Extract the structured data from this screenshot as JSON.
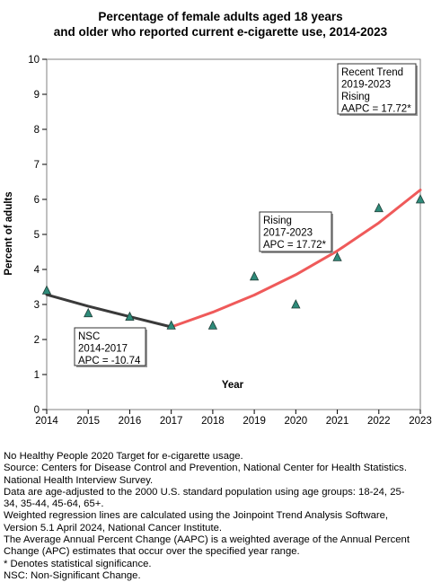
{
  "chart_data": {
    "type": "scatter",
    "title_lines": [
      "Percentage of female adults aged 18 years",
      "and older who reported current e-cigarette use, 2014-2023"
    ],
    "xlabel": "Year",
    "ylabel": "Percent of adults",
    "xlim": [
      2014,
      2023
    ],
    "ylim": [
      0,
      10
    ],
    "x_ticks": [
      2014,
      2015,
      2016,
      2017,
      2018,
      2019,
      2020,
      2021,
      2022,
      2023
    ],
    "y_ticks": [
      0,
      1,
      2,
      3,
      4,
      5,
      6,
      7,
      8,
      9,
      10
    ],
    "grid": false,
    "points": {
      "x": [
        2014,
        2015,
        2016,
        2017,
        2018,
        2019,
        2020,
        2021,
        2022,
        2023
      ],
      "y": [
        3.4,
        2.75,
        2.65,
        2.4,
        2.4,
        3.8,
        3.0,
        4.35,
        5.75,
        6.0
      ],
      "color": "#2e8b7a"
    },
    "trend_segments": [
      {
        "x": [
          2014,
          2015,
          2016,
          2017
        ],
        "y": [
          3.28,
          2.95,
          2.65,
          2.36
        ],
        "color": "#3a3a3a"
      },
      {
        "x": [
          2017,
          2018,
          2019,
          2020,
          2021,
          2022,
          2023
        ],
        "y": [
          2.36,
          2.78,
          3.27,
          3.85,
          4.53,
          5.33,
          6.27
        ],
        "color": "#ef5a5a"
      }
    ],
    "annotations": [
      {
        "lines": [
          "NSC",
          "2014-2017",
          "APC = -10.74"
        ]
      },
      {
        "lines": [
          "Rising",
          "2017-2023",
          "APC = 17.72*"
        ]
      },
      {
        "lines": [
          "Recent Trend",
          "2019-2023",
          "Rising",
          "AAPC = 17.72*"
        ]
      }
    ]
  },
  "footnotes": [
    "No Healthy People 2020 Target for e-cigarette usage.",
    "Source: Centers for Disease Control and Prevention, National Center for Health Statistics.",
    "National Health Interview Survey.",
    "Data are age-adjusted to the 2000 U.S. standard population using age groups: 18-24, 25-",
    "34, 35-44, 45-64, 65+.",
    "Weighted regression lines are calculated using the Joinpoint Trend Analysis Software,",
    "Version 5.1 April 2024, National Cancer Institute.",
    "The Average Annual Percent Change (AAPC) is a weighted average of the Annual Percent",
    "Change (APC) estimates that occur over the specified year range.",
    "* Denotes statistical significance.",
    "NSC: Non-Significant Change."
  ]
}
